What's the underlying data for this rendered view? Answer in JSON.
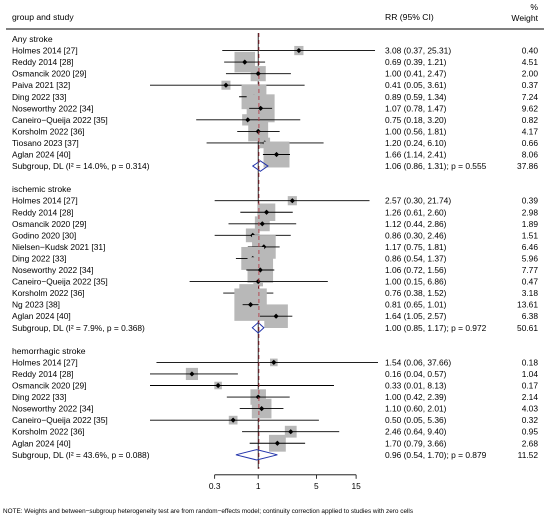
{
  "chart_data": {
    "type": "forest",
    "header": {
      "study_label": "group and study",
      "rr_label": "RR (95% CI)",
      "weight_label_line1": "%",
      "weight_label_line2": "Weight"
    },
    "x_axis": {
      "scale": "log",
      "range": [
        0.2,
        26
      ],
      "ticks": [
        {
          "value": 0.3,
          "label": "0.3"
        },
        {
          "value": 1,
          "label": "1"
        },
        {
          "value": 5,
          "label": "5"
        },
        {
          "value": 15,
          "label": "15"
        }
      ],
      "null_line": 1
    },
    "groups": [
      {
        "name": "Any stroke",
        "studies": [
          {
            "label": "Holmes 2014 [27]",
            "rr": 3.08,
            "lo": 0.37,
            "hi": 25.31,
            "text": "3.08 (0.37, 25.31)",
            "weight": "0.40",
            "w": 0.4
          },
          {
            "label": "Reddy 2014 [28]",
            "rr": 0.69,
            "lo": 0.39,
            "hi": 1.21,
            "text": "0.69 (0.39, 1.21)",
            "weight": "4.51",
            "w": 4.51
          },
          {
            "label": "Osmancik 2020 [29]",
            "rr": 1.0,
            "lo": 0.41,
            "hi": 2.47,
            "text": "1.00 (0.41, 2.47)",
            "weight": "2.00",
            "w": 2.0
          },
          {
            "label": "Paiva 2021 [32]",
            "rr": 0.41,
            "lo": 0.05,
            "hi": 3.61,
            "text": "0.41 (0.05, 3.61)",
            "weight": "0.37",
            "w": 0.37
          },
          {
            "label": "Ding 2022 [33]",
            "rr": 0.89,
            "lo": 0.59,
            "hi": 1.34,
            "text": "0.89 (0.59, 1.34)",
            "weight": "7.24",
            "w": 7.24
          },
          {
            "label": "Noseworthy 2022 [34]",
            "rr": 1.07,
            "lo": 0.78,
            "hi": 1.47,
            "text": "1.07 (0.78, 1.47)",
            "weight": "9.62",
            "w": 9.62
          },
          {
            "label": "Caneiro−Queija 2022 [35]",
            "rr": 0.75,
            "lo": 0.18,
            "hi": 3.2,
            "text": "0.75 (0.18, 3.20)",
            "weight": "0.82",
            "w": 0.82
          },
          {
            "label": "Korsholm 2022 [36]",
            "rr": 1.0,
            "lo": 0.56,
            "hi": 1.81,
            "text": "1.00 (0.56, 1.81)",
            "weight": "4.17",
            "w": 4.17
          },
          {
            "label": "Tiosano 2023 [37]",
            "rr": 1.2,
            "lo": 0.24,
            "hi": 6.1,
            "text": "1.20 (0.24, 6.10)",
            "weight": "0.66",
            "w": 0.66
          },
          {
            "label": "Aglan 2024 [40]",
            "rr": 1.66,
            "lo": 1.14,
            "hi": 2.41,
            "text": "1.66 (1.14, 2.41)",
            "weight": "8.06",
            "w": 8.06
          }
        ],
        "subgroup": {
          "label": "Subgroup, DL (I² = 14.0%, p = 0.314)",
          "rr": 1.06,
          "lo": 0.86,
          "hi": 1.31,
          "text": "1.06 (0.86, 1.31); p = 0.555",
          "weight": "37.86"
        }
      },
      {
        "name": "ischemic stroke",
        "studies": [
          {
            "label": "Holmes 2014 [27]",
            "rr": 2.57,
            "lo": 0.3,
            "hi": 21.74,
            "text": "2.57 (0.30, 21.74)",
            "weight": "0.39",
            "w": 0.39
          },
          {
            "label": "Reddy 2014 [28]",
            "rr": 1.26,
            "lo": 0.61,
            "hi": 2.6,
            "text": "1.26 (0.61, 2.60)",
            "weight": "2.98",
            "w": 2.98
          },
          {
            "label": "Osmancik 2020 [29]",
            "rr": 1.12,
            "lo": 0.44,
            "hi": 2.86,
            "text": "1.12 (0.44, 2.86)",
            "weight": "1.89",
            "w": 1.89
          },
          {
            "label": "Godino 2020 [30]",
            "rr": 0.86,
            "lo": 0.3,
            "hi": 2.46,
            "text": "0.86 (0.30, 2.46)",
            "weight": "1.51",
            "w": 1.51
          },
          {
            "label": "Nielsen−Kudsk 2021 [31]",
            "rr": 1.17,
            "lo": 0.75,
            "hi": 1.81,
            "text": "1.17 (0.75, 1.81)",
            "weight": "6.46",
            "w": 6.46
          },
          {
            "label": "Ding 2022 [33]",
            "rr": 0.86,
            "lo": 0.54,
            "hi": 1.37,
            "text": "0.86 (0.54, 1.37)",
            "weight": "5.96",
            "w": 5.96
          },
          {
            "label": "Noseworthy 2022 [34]",
            "rr": 1.06,
            "lo": 0.72,
            "hi": 1.56,
            "text": "1.06 (0.72, 1.56)",
            "weight": "7.77",
            "w": 7.77
          },
          {
            "label": "Caneiro−Queija 2022 [35]",
            "rr": 1.0,
            "lo": 0.15,
            "hi": 6.86,
            "text": "1.00 (0.15, 6.86)",
            "weight": "0.47",
            "w": 0.47
          },
          {
            "label": "Korsholm 2022 [36]",
            "rr": 0.76,
            "lo": 0.38,
            "hi": 1.52,
            "text": "0.76 (0.38, 1.52)",
            "weight": "3.18",
            "w": 3.18
          },
          {
            "label": "Ng 2023 [38]",
            "rr": 0.81,
            "lo": 0.65,
            "hi": 1.01,
            "text": "0.81 (0.65, 1.01)",
            "weight": "13.61",
            "w": 13.61
          },
          {
            "label": "Aglan 2024 [40]",
            "rr": 1.64,
            "lo": 1.05,
            "hi": 2.57,
            "text": "1.64 (1.05, 2.57)",
            "weight": "6.38",
            "w": 6.38
          }
        ],
        "subgroup": {
          "label": "Subgroup, DL (I² = 7.9%, p = 0.368)",
          "rr": 1.0,
          "lo": 0.85,
          "hi": 1.17,
          "text": "1.00 (0.85, 1.17); p = 0.972",
          "weight": "50.61"
        }
      },
      {
        "name": "hemorrhagic stroke",
        "studies": [
          {
            "label": "Holmes 2014 [27]",
            "rr": 1.54,
            "lo": 0.06,
            "hi": 37.66,
            "text": "1.54 (0.06, 37.66)",
            "weight": "0.18",
            "w": 0.18
          },
          {
            "label": "Reddy 2014 [28]",
            "rr": 0.16,
            "lo": 0.04,
            "hi": 0.57,
            "text": "0.16 (0.04, 0.57)",
            "weight": "1.04",
            "w": 1.04
          },
          {
            "label": "Osmancik 2020 [29]",
            "rr": 0.33,
            "lo": 0.01,
            "hi": 8.13,
            "text": "0.33 (0.01, 8.13)",
            "weight": "0.17",
            "w": 0.17
          },
          {
            "label": "Ding 2022 [33]",
            "rr": 1.0,
            "lo": 0.42,
            "hi": 2.39,
            "text": "1.00 (0.42, 2.39)",
            "weight": "2.14",
            "w": 2.14
          },
          {
            "label": "Noseworthy 2022 [34]",
            "rr": 1.1,
            "lo": 0.6,
            "hi": 2.01,
            "text": "1.10 (0.60, 2.01)",
            "weight": "4.03",
            "w": 4.03
          },
          {
            "label": "Caneiro−Queija 2022 [35]",
            "rr": 0.5,
            "lo": 0.05,
            "hi": 5.36,
            "text": "0.50 (0.05, 5.36)",
            "weight": "0.32",
            "w": 0.32
          },
          {
            "label": "Korsholm 2022 [36]",
            "rr": 2.46,
            "lo": 0.64,
            "hi": 9.4,
            "text": "2.46 (0.64, 9.40)",
            "weight": "0.95",
            "w": 0.95
          },
          {
            "label": "Aglan 2024 [40]",
            "rr": 1.7,
            "lo": 0.79,
            "hi": 3.66,
            "text": "1.70 (0.79, 3.66)",
            "weight": "2.68",
            "w": 2.68
          }
        ],
        "subgroup": {
          "label": "Subgroup, DL (I² = 43.6%, p = 0.088)",
          "rr": 0.96,
          "lo": 0.54,
          "hi": 1.7,
          "text": "0.96 (0.54, 1.70); p = 0.879",
          "weight": "11.52"
        }
      }
    ],
    "footnote": "NOTE: Weights and between−subgroup heterogeneity test are from random−effects model; continuity correction applied to studies with zero cells"
  }
}
